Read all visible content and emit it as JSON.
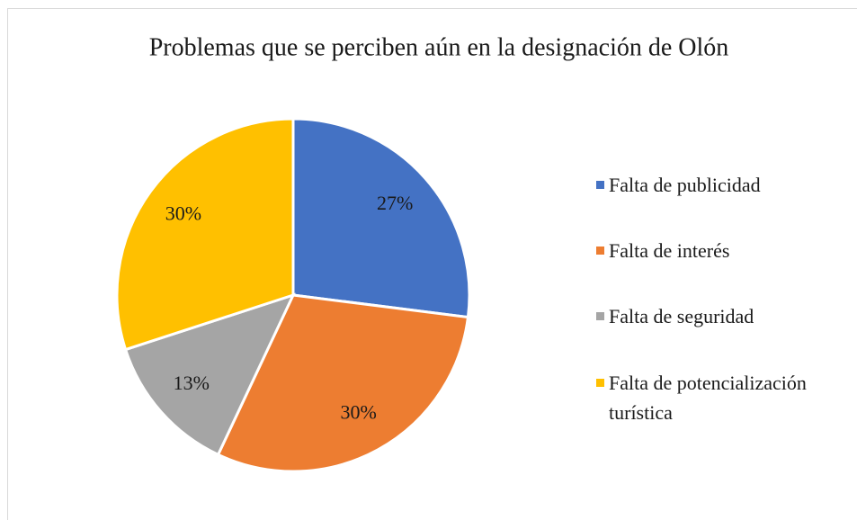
{
  "chart_data": {
    "type": "pie",
    "title": "Problemas que se perciben aún en la designación de Olón",
    "categories": [
      "Falta de publicidad",
      "Falta de interés",
      "Falta de seguridad",
      "Falta de potencialización turística"
    ],
    "values": [
      27,
      30,
      13,
      30
    ],
    "value_labels": [
      "27%",
      "30%",
      "13%",
      "30%"
    ],
    "colors": [
      "#4472c4",
      "#ed7d31",
      "#a5a5a5",
      "#ffc000"
    ],
    "legend": "right"
  }
}
